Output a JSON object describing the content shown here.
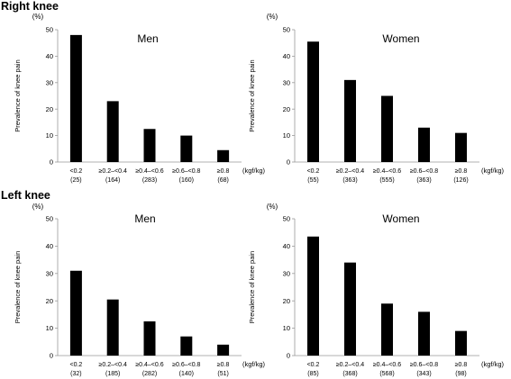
{
  "sections": {
    "right": "Right knee",
    "left": "Left knee"
  },
  "colors": {
    "bar": "#000000",
    "axis": "#999999"
  },
  "chart_data": [
    {
      "type": "bar",
      "section": "Right knee",
      "title": "Men",
      "ylabel": "Prevalence of knee pain",
      "yunit": "(%)",
      "xunit": "(kgf/kg)",
      "ylim": [
        0,
        50
      ],
      "yticks": [
        "0",
        "10",
        "20",
        "30",
        "40",
        "50"
      ],
      "categories": [
        "<0.2",
        "≥0.2–<0.4",
        "≥0.4–<0.6",
        "≥0.6–<0.8",
        "≥0.8"
      ],
      "counts": [
        "(25)",
        "(164)",
        "(283)",
        "(160)",
        "(68)"
      ],
      "values": [
        48,
        23,
        12.5,
        10,
        4.5
      ]
    },
    {
      "type": "bar",
      "section": "Right knee",
      "title": "Women",
      "ylabel": "Prevalence of knee pain",
      "yunit": "(%)",
      "xunit": "(kgf/kg)",
      "ylim": [
        0,
        50
      ],
      "yticks": [
        "0",
        "10",
        "20",
        "30",
        "40",
        "50"
      ],
      "categories": [
        "<0.2",
        "≥0.2–<0.4",
        "≥0.4–<0.6",
        "≥0.6–<0.8",
        "≥0.8"
      ],
      "counts": [
        "(55)",
        "(363)",
        "(555)",
        "(363)",
        "(126)"
      ],
      "values": [
        45.5,
        31,
        25,
        13,
        11
      ]
    },
    {
      "type": "bar",
      "section": "Left knee",
      "title": "Men",
      "ylabel": "Prevalence of knee pain",
      "yunit": "(%)",
      "xunit": "(kgf/kg)",
      "ylim": [
        0,
        50
      ],
      "yticks": [
        "0",
        "10",
        "20",
        "30",
        "40",
        "50"
      ],
      "categories": [
        "<0.2",
        "≥0.2–<0.4",
        "≥0.4–<0.6",
        "≥0.6–<0.8",
        "≥0.8"
      ],
      "counts": [
        "(32)",
        "(185)",
        "(282)",
        "(140)",
        "(51)"
      ],
      "values": [
        31,
        20.5,
        12.5,
        7,
        4
      ]
    },
    {
      "type": "bar",
      "section": "Left knee",
      "title": "Women",
      "ylabel": "Prevalence of knee pain",
      "yunit": "(%)",
      "xunit": "(kgf/kg)",
      "ylim": [
        0,
        50
      ],
      "yticks": [
        "0",
        "10",
        "20",
        "30",
        "40",
        "50"
      ],
      "categories": [
        "<0.2",
        "≥0.2–<0.4",
        "≥0.4–<0.6",
        "≥0.6–<0.8",
        "≥0.8"
      ],
      "counts": [
        "(85)",
        "(368)",
        "(568)",
        "(343)",
        "(98)"
      ],
      "values": [
        43.5,
        34,
        19,
        16,
        9
      ]
    }
  ]
}
